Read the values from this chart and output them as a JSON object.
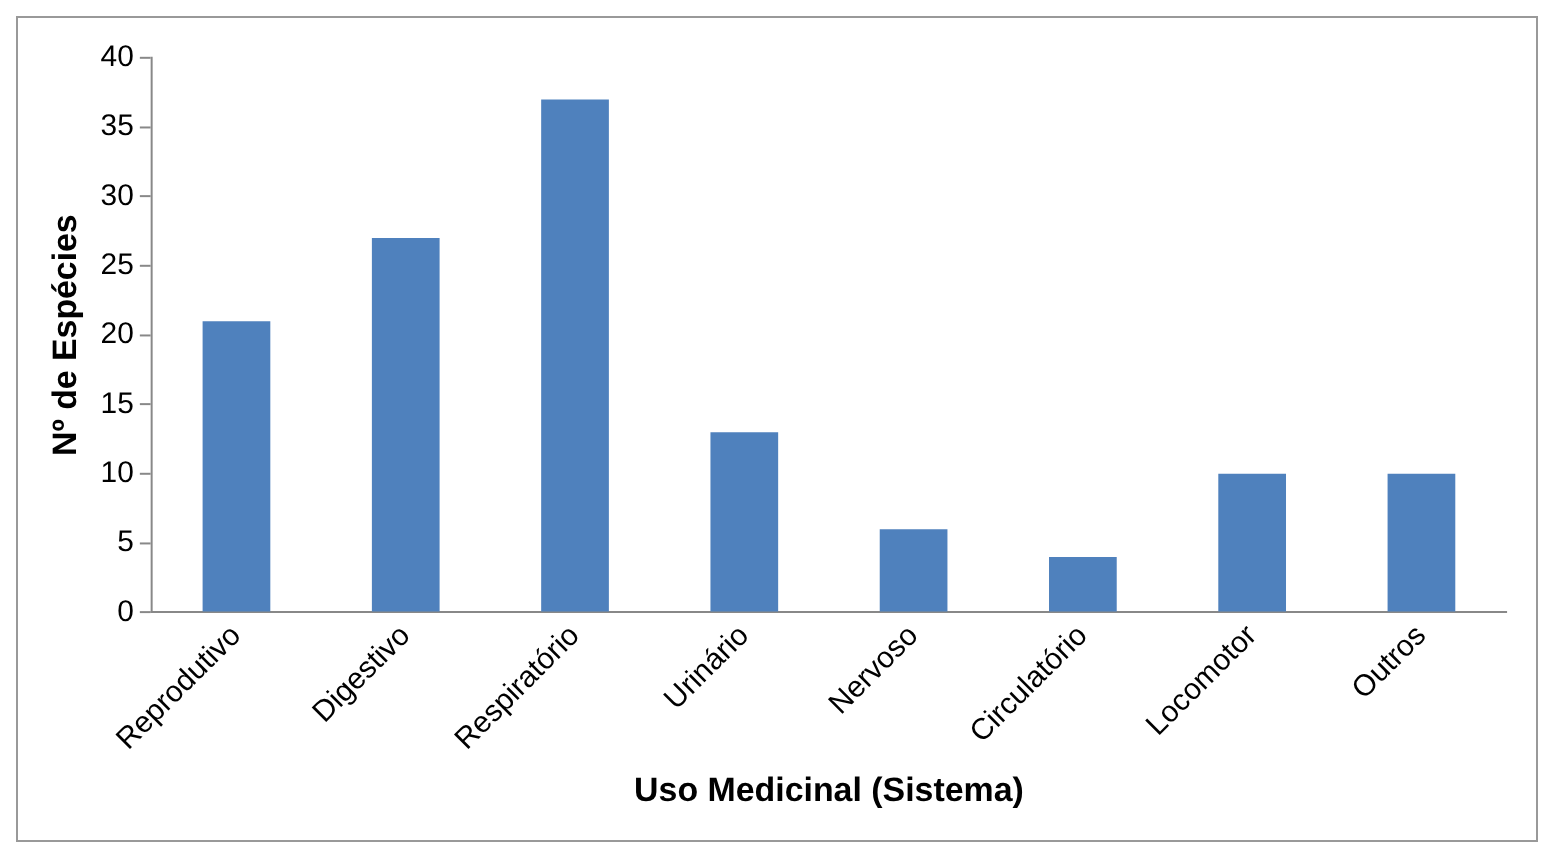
{
  "chart_data": {
    "type": "bar",
    "xlabel": "Uso Medicinal (Sistema)",
    "ylabel": "Nº de Espécies",
    "categories": [
      "Reprodutivo",
      "Digestivo",
      "Respiratório",
      "Urinário",
      "Nervoso",
      "Circulatório",
      "Locomotor",
      "Outros"
    ],
    "values": [
      21,
      27,
      37,
      13,
      6,
      4,
      10,
      10
    ],
    "color": "#4f81bd",
    "ylim": [
      0,
      40
    ],
    "yticks": [
      0,
      5,
      10,
      15,
      20,
      25,
      30,
      35,
      40
    ],
    "grid": false,
    "legend": false
  }
}
